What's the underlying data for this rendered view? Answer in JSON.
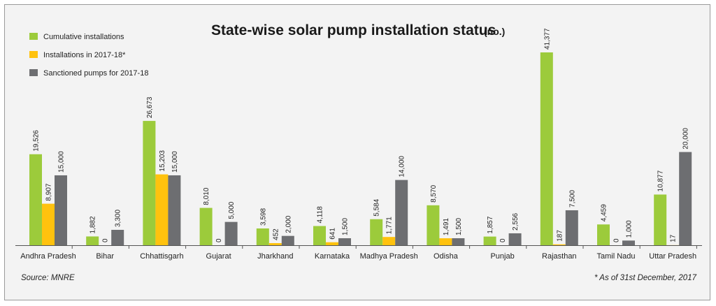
{
  "chart_data": {
    "type": "bar",
    "title": "State-wise solar pump installation status",
    "title_unit": "(no.)",
    "categories": [
      "Andhra Pradesh",
      "Bihar",
      "Chhattisgarh",
      "Gujarat",
      "Jharkhand",
      "Karnataka",
      "Madhya Pradesh",
      "Odisha",
      "Punjab",
      "Rajasthan",
      "Tamil Nadu",
      "Uttar Pradesh"
    ],
    "series": [
      {
        "name": "Cumulative installations",
        "color": "#9ccb3b",
        "values": [
          19526,
          1882,
          26673,
          8010,
          3598,
          4118,
          5584,
          8570,
          1857,
          41377,
          4459,
          10877
        ],
        "labels": [
          "19,526",
          "1,882",
          "26,673",
          "8,010",
          "3,598",
          "4,118",
          "5,584",
          "8,570",
          "1,857",
          "41,377",
          "4,459",
          "10,877"
        ]
      },
      {
        "name": "Installations in 2017-18*",
        "color": "#ffc20e",
        "values": [
          8907,
          0,
          15203,
          0,
          452,
          641,
          1771,
          1491,
          0,
          187,
          0,
          17
        ],
        "labels": [
          "8,907",
          "0",
          "15,203",
          "0",
          "452",
          "641",
          "1,771",
          "1,491",
          "0",
          "187",
          "0",
          "17"
        ]
      },
      {
        "name": "Sanctioned pumps for 2017-18",
        "color": "#6d6e71",
        "values": [
          15000,
          3300,
          15000,
          5000,
          2000,
          1500,
          14000,
          1500,
          2556,
          7500,
          1000,
          20000
        ],
        "labels": [
          "15,000",
          "3,300",
          "15,000",
          "5,000",
          "2,000",
          "1,500",
          "14,000",
          "1,500",
          "2,556",
          "7,500",
          "1,000",
          "20,000"
        ]
      }
    ],
    "ylim": [
      0,
      41377
    ],
    "xlabel": "",
    "ylabel": "",
    "legend": "top-left"
  },
  "footer": {
    "source": "Source: MNRE",
    "note": "* As of 31st December, 2017"
  },
  "colors": {
    "background": "#f3f3f3",
    "axis": "#555555"
  }
}
